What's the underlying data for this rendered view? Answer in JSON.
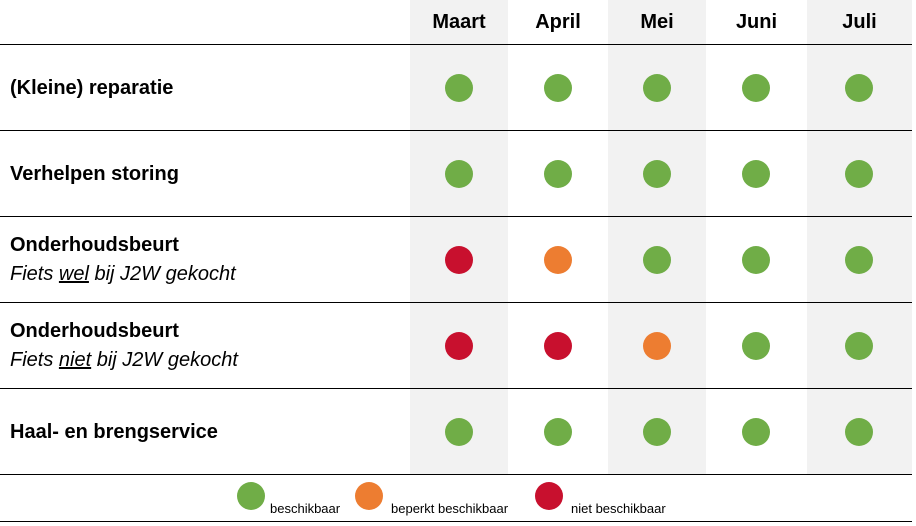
{
  "months": [
    "Maart",
    "April",
    "Mei",
    "Juni",
    "Juli"
  ],
  "colors": {
    "beschikbaar": "#70ad47",
    "beperkt": "#ed7d31",
    "niet": "#c8102e",
    "column_shade": "#f2f2f2"
  },
  "rows": [
    {
      "title": "(Kleine) reparatie",
      "statuses": [
        "beschikbaar",
        "beschikbaar",
        "beschikbaar",
        "beschikbaar",
        "beschikbaar"
      ]
    },
    {
      "title": "Verhelpen storing",
      "statuses": [
        "beschikbaar",
        "beschikbaar",
        "beschikbaar",
        "beschikbaar",
        "beschikbaar"
      ]
    },
    {
      "title": "Onderhoudsbeurt",
      "sub_pre": "Fiets ",
      "sub_emph": "wel",
      "sub_post": " bij J2W gekocht",
      "statuses": [
        "niet",
        "beperkt",
        "beschikbaar",
        "beschikbaar",
        "beschikbaar"
      ]
    },
    {
      "title": "Onderhoudsbeurt",
      "sub_pre": "Fiets ",
      "sub_emph": "niet",
      "sub_post": " bij J2W gekocht",
      "statuses": [
        "niet",
        "niet",
        "beperkt",
        "beschikbaar",
        "beschikbaar"
      ]
    },
    {
      "title": "Haal- en brengservice",
      "statuses": [
        "beschikbaar",
        "beschikbaar",
        "beschikbaar",
        "beschikbaar",
        "beschikbaar"
      ]
    }
  ],
  "legend": {
    "beschikbaar": "beschikbaar",
    "beperkt": "beperkt beschikbaar",
    "niet": "niet beschikbaar"
  }
}
